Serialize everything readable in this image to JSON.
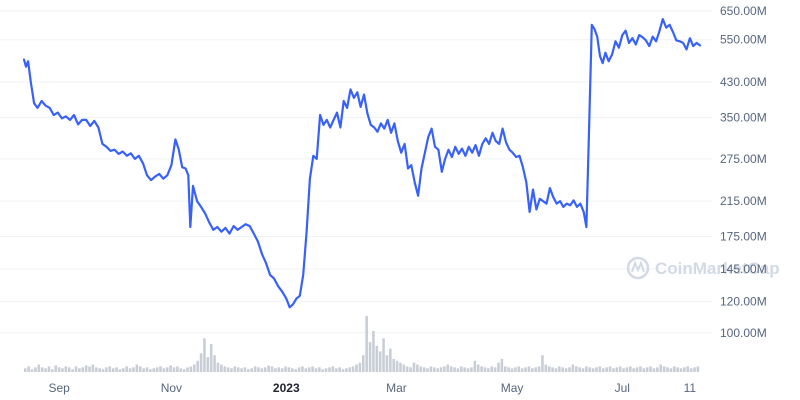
{
  "chart_data": {
    "type": "line",
    "yscale": "log",
    "ylim": [
      97,
      650
    ],
    "xlim": [
      0,
      100
    ],
    "y_ticks": [
      {
        "value": 650,
        "label": "650.00M"
      },
      {
        "value": 550,
        "label": "550.00M"
      },
      {
        "value": 430,
        "label": "430.00M"
      },
      {
        "value": 350,
        "label": "350.00M"
      },
      {
        "value": 275,
        "label": "275.00M"
      },
      {
        "value": 215,
        "label": "215.00M"
      },
      {
        "value": 175,
        "label": "175.00M"
      },
      {
        "value": 145,
        "label": "145.00M"
      },
      {
        "value": 120,
        "label": "120.00M"
      },
      {
        "value": 100,
        "label": "100.00M"
      }
    ],
    "x_ticks": [
      {
        "x": 5.2,
        "label": "Sep",
        "bold": false
      },
      {
        "x": 21.8,
        "label": "Nov",
        "bold": false
      },
      {
        "x": 38.8,
        "label": "2023",
        "bold": true
      },
      {
        "x": 55.1,
        "label": "Mar",
        "bold": false
      },
      {
        "x": 72.2,
        "label": "May",
        "bold": false
      },
      {
        "x": 88.5,
        "label": "Jul",
        "bold": false
      },
      {
        "x": 98.5,
        "label": "11",
        "bold": false
      }
    ],
    "line_color": "#3861fb",
    "grid": true,
    "series": [
      {
        "values": [
          [
            0,
            490
          ],
          [
            0.3,
            470
          ],
          [
            0.6,
            485
          ],
          [
            1.0,
            430
          ],
          [
            1.5,
            380
          ],
          [
            2.0,
            370
          ],
          [
            2.6,
            385
          ],
          [
            3.2,
            375
          ],
          [
            3.8,
            370
          ],
          [
            4.4,
            355
          ],
          [
            5.0,
            360
          ],
          [
            5.6,
            348
          ],
          [
            6.2,
            352
          ],
          [
            6.8,
            345
          ],
          [
            7.4,
            355
          ],
          [
            8.0,
            336
          ],
          [
            8.6,
            345
          ],
          [
            9.2,
            345
          ],
          [
            9.8,
            333
          ],
          [
            10.4,
            343
          ],
          [
            11.0,
            330
          ],
          [
            11.6,
            300
          ],
          [
            12.2,
            295
          ],
          [
            12.8,
            288
          ],
          [
            13.4,
            290
          ],
          [
            14.0,
            283
          ],
          [
            14.6,
            287
          ],
          [
            15.2,
            280
          ],
          [
            15.8,
            284
          ],
          [
            16.4,
            275
          ],
          [
            17.0,
            280
          ],
          [
            17.6,
            268
          ],
          [
            18.2,
            250
          ],
          [
            18.8,
            243
          ],
          [
            19.4,
            248
          ],
          [
            20.0,
            252
          ],
          [
            20.6,
            245
          ],
          [
            21.2,
            250
          ],
          [
            21.8,
            265
          ],
          [
            22.4,
            308
          ],
          [
            22.9,
            290
          ],
          [
            23.4,
            262
          ],
          [
            23.9,
            260
          ],
          [
            24.3,
            250
          ],
          [
            24.6,
            185
          ],
          [
            25.0,
            235
          ],
          [
            25.6,
            215
          ],
          [
            26.2,
            208
          ],
          [
            26.8,
            200
          ],
          [
            27.4,
            190
          ],
          [
            28.0,
            182
          ],
          [
            28.6,
            185
          ],
          [
            29.2,
            180
          ],
          [
            29.8,
            184
          ],
          [
            30.4,
            178
          ],
          [
            31.0,
            186
          ],
          [
            31.6,
            182
          ],
          [
            32.2,
            185
          ],
          [
            32.8,
            188
          ],
          [
            33.4,
            186
          ],
          [
            34.0,
            178
          ],
          [
            34.6,
            170
          ],
          [
            35.2,
            158
          ],
          [
            35.8,
            150
          ],
          [
            36.4,
            140
          ],
          [
            37.0,
            137
          ],
          [
            37.6,
            131
          ],
          [
            38.2,
            127
          ],
          [
            38.8,
            122
          ],
          [
            39.3,
            116
          ],
          [
            39.8,
            118
          ],
          [
            40.3,
            122
          ],
          [
            40.8,
            124
          ],
          [
            41.3,
            140
          ],
          [
            41.8,
            180
          ],
          [
            42.3,
            245
          ],
          [
            42.8,
            280
          ],
          [
            43.3,
            275
          ],
          [
            43.8,
            355
          ],
          [
            44.3,
            335
          ],
          [
            44.8,
            345
          ],
          [
            45.3,
            330
          ],
          [
            45.8,
            345
          ],
          [
            46.3,
            360
          ],
          [
            46.8,
            330
          ],
          [
            47.3,
            385
          ],
          [
            47.8,
            370
          ],
          [
            48.3,
            412
          ],
          [
            48.8,
            392
          ],
          [
            49.3,
            405
          ],
          [
            49.8,
            372
          ],
          [
            50.3,
            400
          ],
          [
            50.8,
            358
          ],
          [
            51.3,
            335
          ],
          [
            51.8,
            330
          ],
          [
            52.3,
            322
          ],
          [
            52.8,
            338
          ],
          [
            53.3,
            328
          ],
          [
            53.8,
            345
          ],
          [
            54.3,
            320
          ],
          [
            54.8,
            338
          ],
          [
            55.3,
            305
          ],
          [
            55.8,
            285
          ],
          [
            56.3,
            300
          ],
          [
            56.8,
            260
          ],
          [
            57.3,
            265
          ],
          [
            57.8,
            240
          ],
          [
            58.3,
            222
          ],
          [
            58.8,
            260
          ],
          [
            59.3,
            285
          ],
          [
            59.8,
            312
          ],
          [
            60.3,
            328
          ],
          [
            60.8,
            295
          ],
          [
            61.3,
            290
          ],
          [
            61.8,
            255
          ],
          [
            62.3,
            275
          ],
          [
            62.8,
            290
          ],
          [
            63.3,
            278
          ],
          [
            63.8,
            295
          ],
          [
            64.3,
            283
          ],
          [
            64.8,
            292
          ],
          [
            65.3,
            280
          ],
          [
            65.8,
            295
          ],
          [
            66.3,
            285
          ],
          [
            66.8,
            298
          ],
          [
            67.3,
            280
          ],
          [
            67.8,
            300
          ],
          [
            68.3,
            310
          ],
          [
            68.8,
            300
          ],
          [
            69.3,
            320
          ],
          [
            69.8,
            305
          ],
          [
            70.3,
            300
          ],
          [
            70.8,
            328
          ],
          [
            71.3,
            303
          ],
          [
            71.8,
            290
          ],
          [
            72.3,
            285
          ],
          [
            72.8,
            278
          ],
          [
            73.3,
            280
          ],
          [
            73.8,
            262
          ],
          [
            74.3,
            240
          ],
          [
            74.8,
            202
          ],
          [
            75.3,
            230
          ],
          [
            75.8,
            205
          ],
          [
            76.3,
            218
          ],
          [
            76.8,
            215
          ],
          [
            77.3,
            212
          ],
          [
            77.8,
            232
          ],
          [
            78.3,
            220
          ],
          [
            78.8,
            212
          ],
          [
            79.3,
            215
          ],
          [
            79.8,
            208
          ],
          [
            80.3,
            212
          ],
          [
            80.8,
            210
          ],
          [
            81.3,
            216
          ],
          [
            81.8,
            208
          ],
          [
            82.3,
            212
          ],
          [
            82.8,
            202
          ],
          [
            83.2,
            185
          ],
          [
            83.6,
            330
          ],
          [
            84.0,
            600
          ],
          [
            84.4,
            585
          ],
          [
            84.8,
            560
          ],
          [
            85.2,
            500
          ],
          [
            85.6,
            480
          ],
          [
            86.0,
            510
          ],
          [
            86.5,
            485
          ],
          [
            87.0,
            505
          ],
          [
            87.5,
            545
          ],
          [
            88.0,
            525
          ],
          [
            88.5,
            565
          ],
          [
            89.0,
            580
          ],
          [
            89.5,
            540
          ],
          [
            90.0,
            555
          ],
          [
            90.5,
            535
          ],
          [
            91.0,
            565
          ],
          [
            91.5,
            558
          ],
          [
            92.0,
            548
          ],
          [
            92.5,
            530
          ],
          [
            93.0,
            560
          ],
          [
            93.5,
            545
          ],
          [
            94.0,
            578
          ],
          [
            94.5,
            620
          ],
          [
            95.0,
            590
          ],
          [
            95.5,
            600
          ],
          [
            96.0,
            575
          ],
          [
            96.5,
            548
          ],
          [
            97.0,
            545
          ],
          [
            97.5,
            540
          ],
          [
            98.0,
            520
          ],
          [
            98.5,
            555
          ],
          [
            99.0,
            530
          ],
          [
            99.5,
            540
          ],
          [
            100,
            532
          ]
        ]
      }
    ],
    "volume": [
      4,
      6,
      3,
      5,
      8,
      5,
      4,
      6,
      3,
      7,
      5,
      4,
      6,
      5,
      3,
      6,
      4,
      5,
      7,
      6,
      8,
      5,
      4,
      3,
      5,
      6,
      4,
      5,
      3,
      4,
      6,
      4,
      5,
      8,
      6,
      4,
      5,
      3,
      4,
      5,
      6,
      4,
      5,
      7,
      5,
      6,
      4,
      3,
      5,
      6,
      8,
      12,
      20,
      36,
      16,
      30,
      18,
      10,
      8,
      6,
      5,
      4,
      6,
      5,
      4,
      5,
      3,
      4,
      6,
      5,
      4,
      5,
      7,
      6,
      4,
      5,
      4,
      6,
      5,
      4,
      3,
      5,
      6,
      4,
      5,
      6,
      4,
      5,
      3,
      4,
      5,
      6,
      4,
      5,
      3,
      4,
      5,
      6,
      8,
      10,
      18,
      60,
      32,
      44,
      28,
      22,
      36,
      18,
      25,
      14,
      12,
      10,
      8,
      6,
      5,
      10,
      8,
      6,
      5,
      4,
      6,
      5,
      4,
      5,
      6,
      8,
      6,
      5,
      4,
      6,
      5,
      4,
      5,
      12,
      8,
      6,
      5,
      4,
      6,
      5,
      10,
      14,
      6,
      5,
      4,
      5,
      6,
      4,
      5,
      6,
      4,
      5,
      6,
      18,
      8,
      6,
      5,
      4,
      6,
      5,
      4,
      5,
      8,
      6,
      5,
      4,
      6,
      5,
      4,
      5,
      6,
      4,
      5,
      6,
      4,
      5,
      6,
      4,
      5,
      6,
      4,
      5,
      6,
      4,
      5,
      6,
      4,
      5,
      8,
      6,
      5,
      4,
      6,
      5,
      4,
      5,
      6,
      4,
      5,
      6
    ],
    "volume_color": "#c9ced6"
  },
  "watermark": {
    "text": "CoinMarketCap",
    "icon": "coinmarketcap-logo-icon"
  }
}
